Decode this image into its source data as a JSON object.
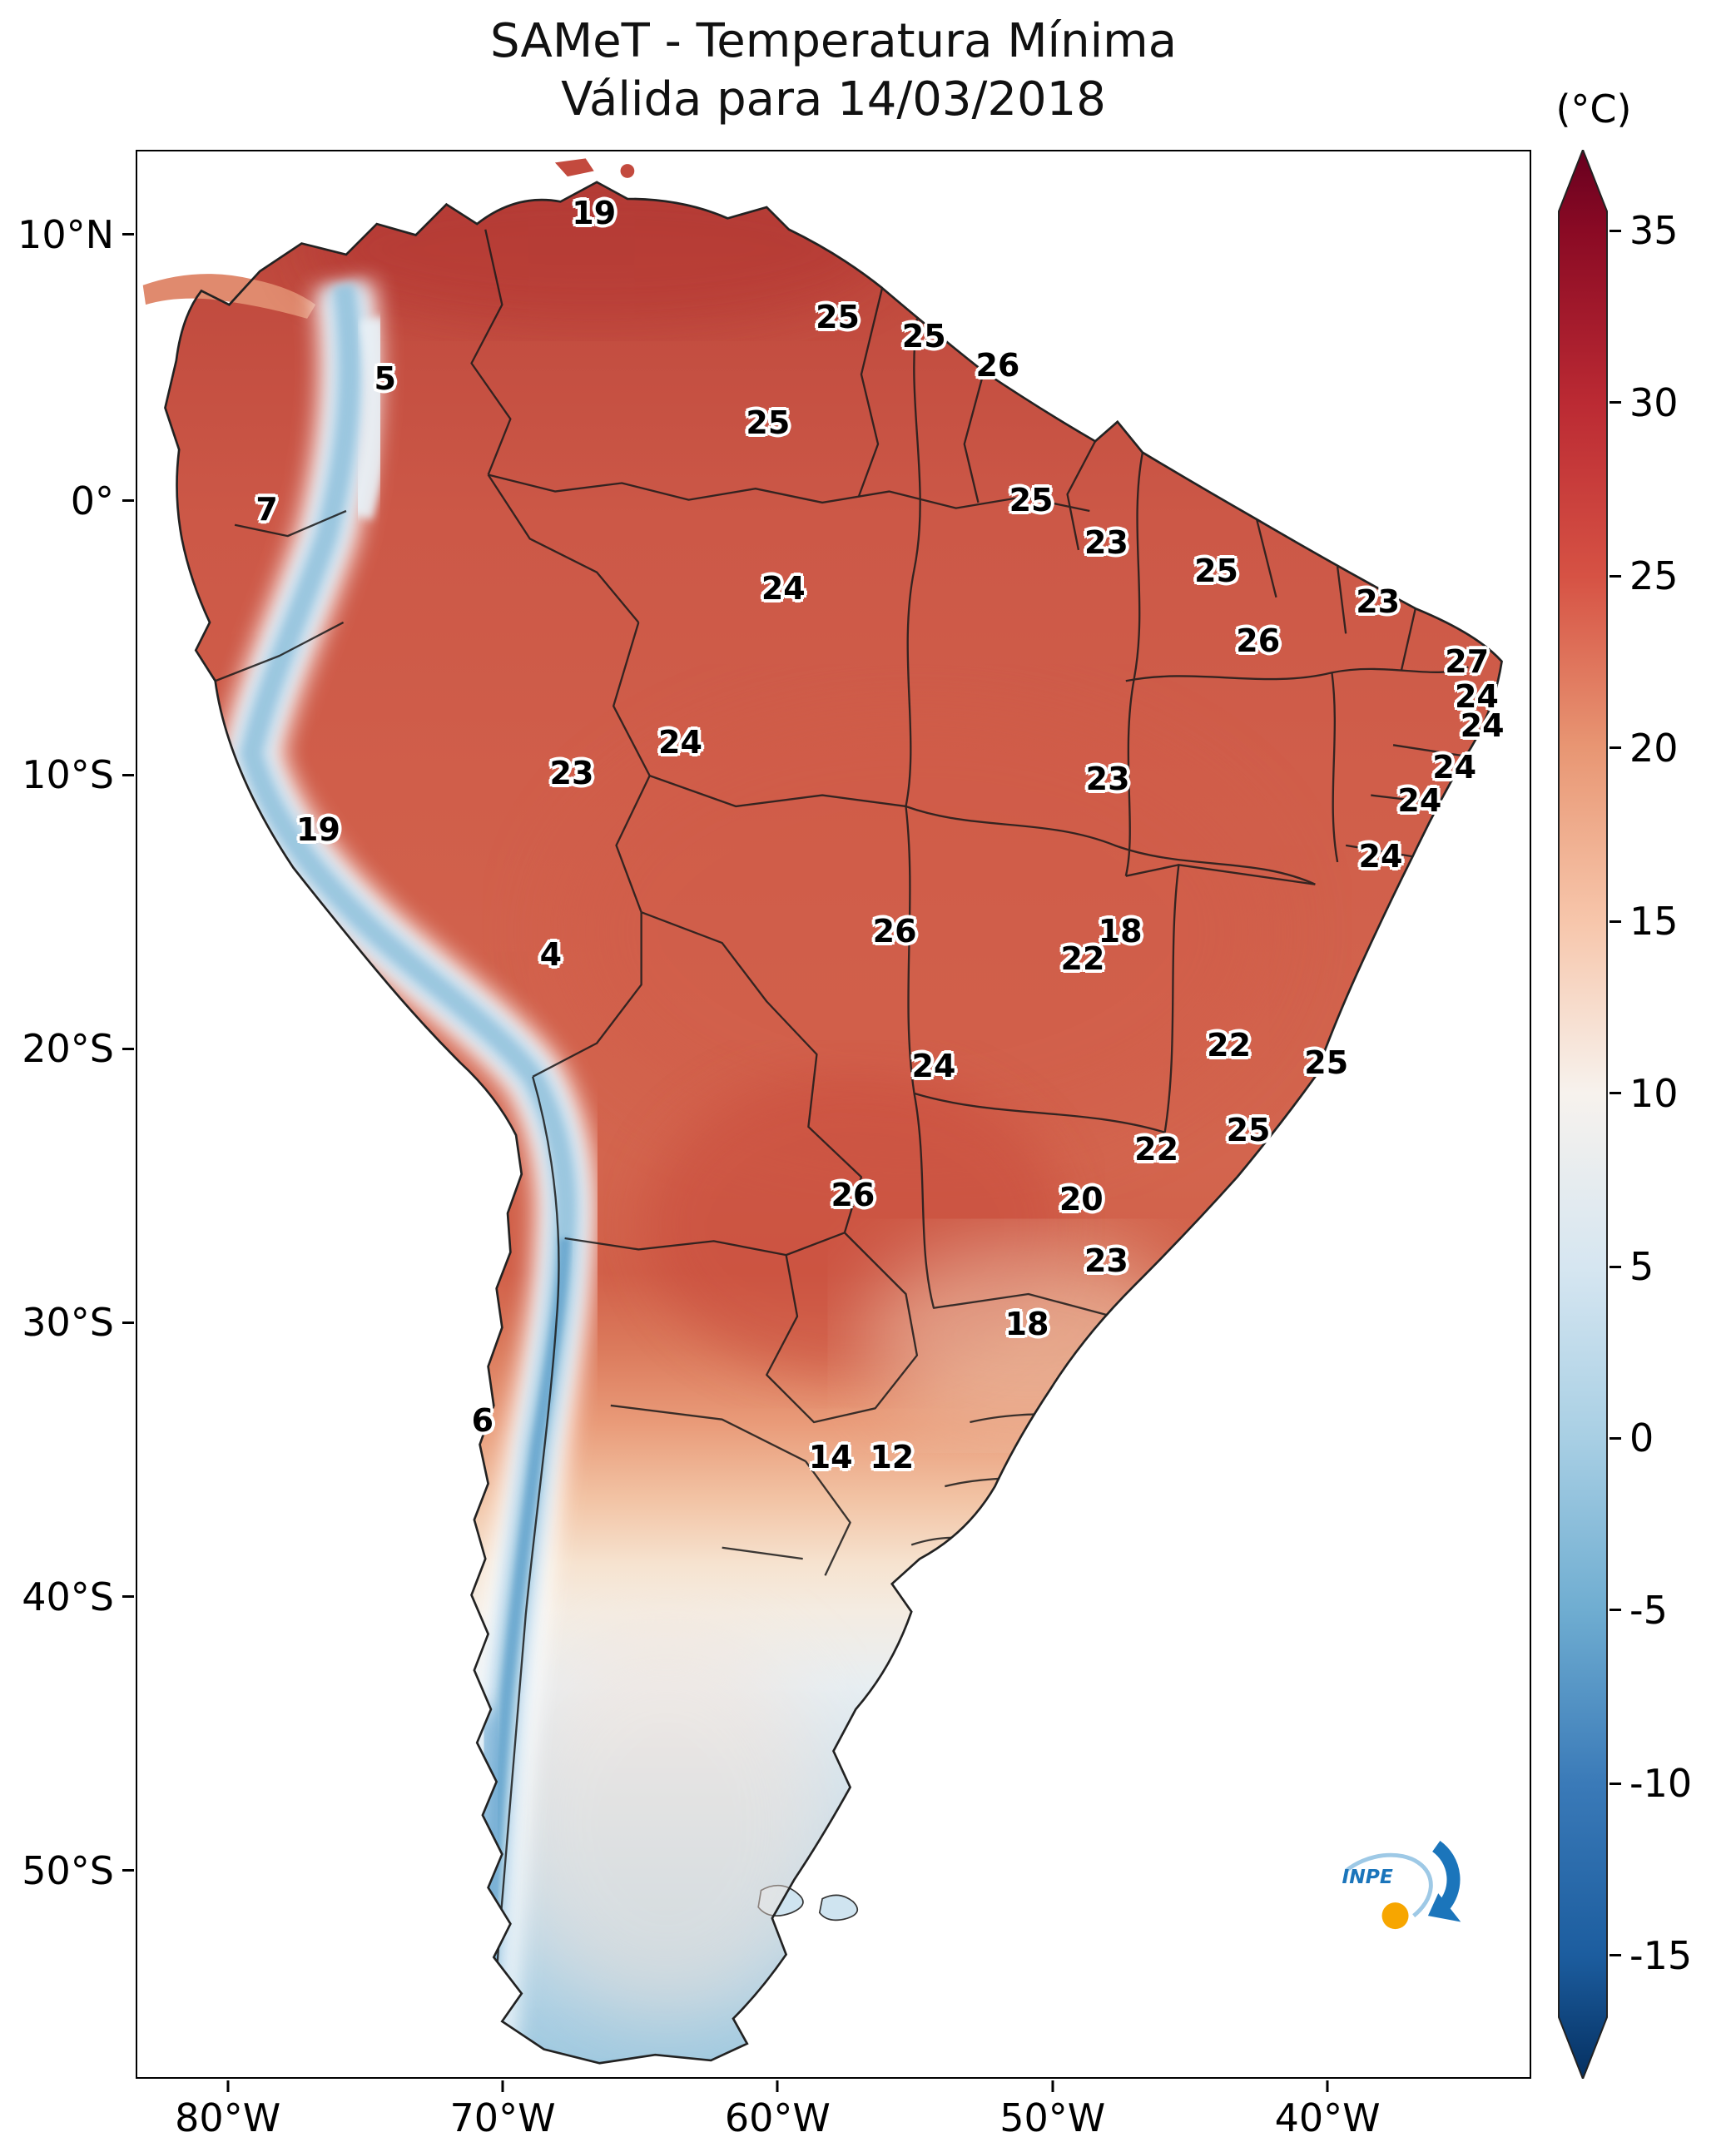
{
  "title": {
    "line1": "SAMeT - Temperatura Mínima",
    "line2": "Válida para 14/03/2018"
  },
  "colorbar": {
    "unit_label": "(°C)",
    "ticks": [
      {
        "value": "35",
        "pct": 4.2
      },
      {
        "value": "30",
        "pct": 13.1
      },
      {
        "value": "25",
        "pct": 22.1
      },
      {
        "value": "20",
        "pct": 31.0
      },
      {
        "value": "15",
        "pct": 40.0
      },
      {
        "value": "10",
        "pct": 48.9
      },
      {
        "value": "5",
        "pct": 57.9
      },
      {
        "value": "0",
        "pct": 66.8
      },
      {
        "value": "-5",
        "pct": 75.7
      },
      {
        "value": "-10",
        "pct": 84.7
      },
      {
        "value": "-15",
        "pct": 93.6
      }
    ],
    "gradient": [
      {
        "pct": 0,
        "color": "#67001f"
      },
      {
        "pct": 4.2,
        "color": "#8a0a24"
      },
      {
        "pct": 13.1,
        "color": "#bb2a33"
      },
      {
        "pct": 22.1,
        "color": "#d65244"
      },
      {
        "pct": 31.0,
        "color": "#e89673"
      },
      {
        "pct": 40.0,
        "color": "#f7c6ab"
      },
      {
        "pct": 48.9,
        "color": "#f7f2ed"
      },
      {
        "pct": 57.9,
        "color": "#d6e6f1"
      },
      {
        "pct": 66.8,
        "color": "#a8cfe4"
      },
      {
        "pct": 75.7,
        "color": "#6fadd1"
      },
      {
        "pct": 84.7,
        "color": "#3a7ab8"
      },
      {
        "pct": 93.6,
        "color": "#1c5d9f"
      },
      {
        "pct": 100,
        "color": "#053061"
      }
    ]
  },
  "axes": {
    "lat": [
      {
        "label": "10°N",
        "pct": 4.4
      },
      {
        "label": "0°",
        "pct": 18.2
      },
      {
        "label": "10°S",
        "pct": 32.4
      },
      {
        "label": "20°S",
        "pct": 46.6
      },
      {
        "label": "30°S",
        "pct": 60.8
      },
      {
        "label": "40°S",
        "pct": 75.0
      },
      {
        "label": "50°S",
        "pct": 89.2
      }
    ],
    "lon": [
      {
        "label": "80°W",
        "pct": 6.6
      },
      {
        "label": "70°W",
        "pct": 26.3
      },
      {
        "label": "60°W",
        "pct": 46.0
      },
      {
        "label": "50°W",
        "pct": 65.7
      },
      {
        "label": "40°W",
        "pct": 85.4
      }
    ]
  },
  "chart_data": {
    "type": "heatmap",
    "unit": "°C",
    "scale_min": -15,
    "scale_max": 35,
    "station_labels": [
      {
        "value": "19",
        "x": 32.8,
        "y": 3.2
      },
      {
        "value": "25",
        "x": 50.3,
        "y": 8.6
      },
      {
        "value": "25",
        "x": 56.5,
        "y": 9.6
      },
      {
        "value": "26",
        "x": 61.8,
        "y": 11.1
      },
      {
        "value": "5",
        "x": 17.8,
        "y": 11.8
      },
      {
        "value": "25",
        "x": 45.3,
        "y": 14.1
      },
      {
        "value": "7",
        "x": 9.3,
        "y": 18.6
      },
      {
        "value": "25",
        "x": 64.2,
        "y": 18.1
      },
      {
        "value": "23",
        "x": 69.6,
        "y": 20.3
      },
      {
        "value": "25",
        "x": 77.5,
        "y": 21.8
      },
      {
        "value": "24",
        "x": 46.4,
        "y": 22.7
      },
      {
        "value": "23",
        "x": 89.1,
        "y": 23.4
      },
      {
        "value": "26",
        "x": 80.5,
        "y": 25.4
      },
      {
        "value": "27",
        "x": 95.5,
        "y": 26.5
      },
      {
        "value": "24",
        "x": 96.2,
        "y": 28.3
      },
      {
        "value": "24",
        "x": 96.6,
        "y": 29.8
      },
      {
        "value": "24",
        "x": 39.0,
        "y": 30.7
      },
      {
        "value": "23",
        "x": 31.2,
        "y": 32.3
      },
      {
        "value": "23",
        "x": 69.7,
        "y": 32.6
      },
      {
        "value": "24",
        "x": 94.6,
        "y": 32.0
      },
      {
        "value": "24",
        "x": 92.1,
        "y": 33.7
      },
      {
        "value": "19",
        "x": 13.0,
        "y": 35.2
      },
      {
        "value": "24",
        "x": 89.3,
        "y": 36.6
      },
      {
        "value": "4",
        "x": 29.7,
        "y": 41.7
      },
      {
        "value": "26",
        "x": 54.4,
        "y": 40.5
      },
      {
        "value": "18",
        "x": 70.6,
        "y": 40.5
      },
      {
        "value": "22",
        "x": 67.9,
        "y": 41.9
      },
      {
        "value": "22",
        "x": 78.4,
        "y": 46.4
      },
      {
        "value": "24",
        "x": 57.2,
        "y": 47.5
      },
      {
        "value": "25",
        "x": 85.4,
        "y": 47.3
      },
      {
        "value": "25",
        "x": 79.8,
        "y": 50.8
      },
      {
        "value": "22",
        "x": 73.2,
        "y": 51.8
      },
      {
        "value": "26",
        "x": 51.4,
        "y": 54.2
      },
      {
        "value": "20",
        "x": 67.8,
        "y": 54.4
      },
      {
        "value": "23",
        "x": 69.6,
        "y": 57.6
      },
      {
        "value": "18",
        "x": 63.9,
        "y": 60.9
      },
      {
        "value": "6",
        "x": 24.8,
        "y": 65.9
      },
      {
        "value": "14",
        "x": 49.8,
        "y": 67.8
      },
      {
        "value": "12",
        "x": 54.2,
        "y": 67.8
      }
    ]
  },
  "logo": {
    "text": "INPE"
  },
  "palette": {
    "land_hot": "#cd5847",
    "land_cold": "#9fc9e0",
    "andes_blue": "#96c4de",
    "border_line": "#1a1a1a"
  }
}
